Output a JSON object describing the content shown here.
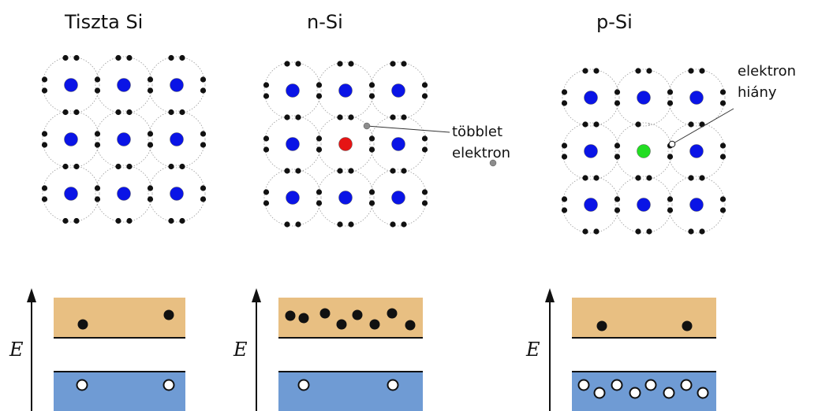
{
  "panels": [
    {
      "title": "Tiszta Si",
      "dopant": "none"
    },
    {
      "title": "n-Si",
      "dopant": "donor",
      "annotation": [
        "többlet",
        "elektron"
      ]
    },
    {
      "title": "p-Si",
      "dopant": "acceptor",
      "annotation": [
        "elektron",
        "hiány"
      ]
    }
  ],
  "energy_axis_label": "E",
  "band_diagrams": [
    {
      "conduction_electrons": 2,
      "valence_holes": 2
    },
    {
      "conduction_electrons": 8,
      "valence_holes": 2
    },
    {
      "conduction_electrons": 2,
      "valence_holes": 8
    }
  ],
  "colors": {
    "silicon_atom": "#0a14e6",
    "donor_atom": "#e61414",
    "acceptor_atom": "#22dd22",
    "electron": "#111111",
    "extra_electron": "#8c8c8c",
    "conduction_band": "#e8bf82",
    "valence_band": "#6f9bd4"
  }
}
